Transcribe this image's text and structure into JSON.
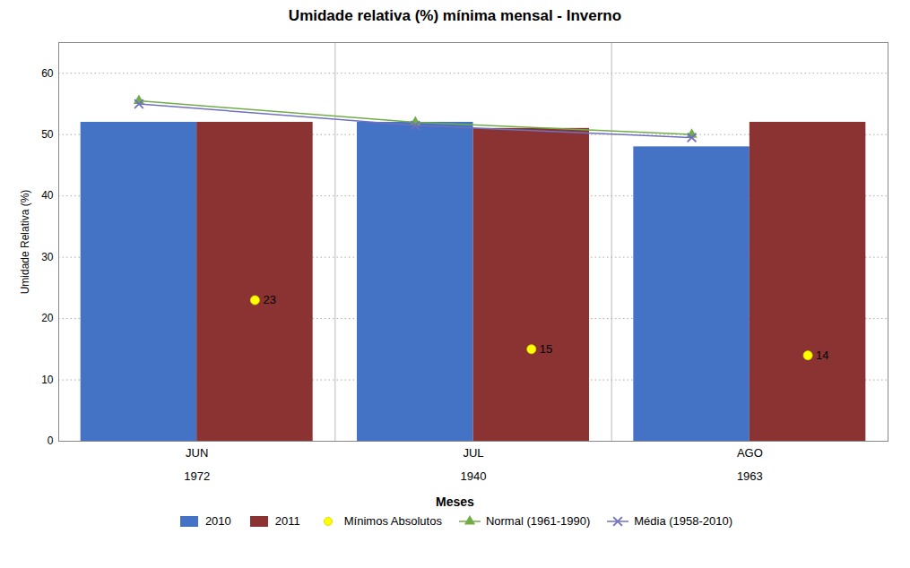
{
  "chart_data": {
    "type": "bar",
    "title": "Umidade relativa (%) mínima mensal - Inverno",
    "xlabel": "Meses",
    "ylabel": "Umidade Relativa (%)",
    "categories": [
      "JUN\n\n1972",
      "JUL\n\n1940",
      "AGO\n\n1963"
    ],
    "ylim": [
      0,
      65
    ],
    "yticks": [
      0,
      10,
      20,
      30,
      40,
      50,
      60
    ],
    "grid": true,
    "legend": "bottom",
    "series": [
      {
        "name": "2010",
        "type": "bar",
        "color": "#4472C4",
        "values": [
          52,
          52,
          48
        ]
      },
      {
        "name": "2011",
        "type": "bar",
        "color": "#8B3333",
        "values": [
          52,
          51,
          52
        ]
      },
      {
        "name": "Mínimos Absolutos",
        "type": "scatter",
        "color": "#FFFF00",
        "marker": "circle",
        "data_labels": true,
        "values": [
          23,
          15,
          14
        ]
      },
      {
        "name": "Normal (1961-1990)",
        "type": "line",
        "color": "#70AD47",
        "marker": "triangle",
        "line_style": "solid",
        "values": [
          55.5,
          52.0,
          50.0
        ]
      },
      {
        "name": "Média (1958-2010)",
        "type": "line",
        "color": "#7070C0",
        "marker": "x",
        "line_style": "solid",
        "values": [
          55.0,
          51.5,
          49.5
        ]
      }
    ]
  }
}
